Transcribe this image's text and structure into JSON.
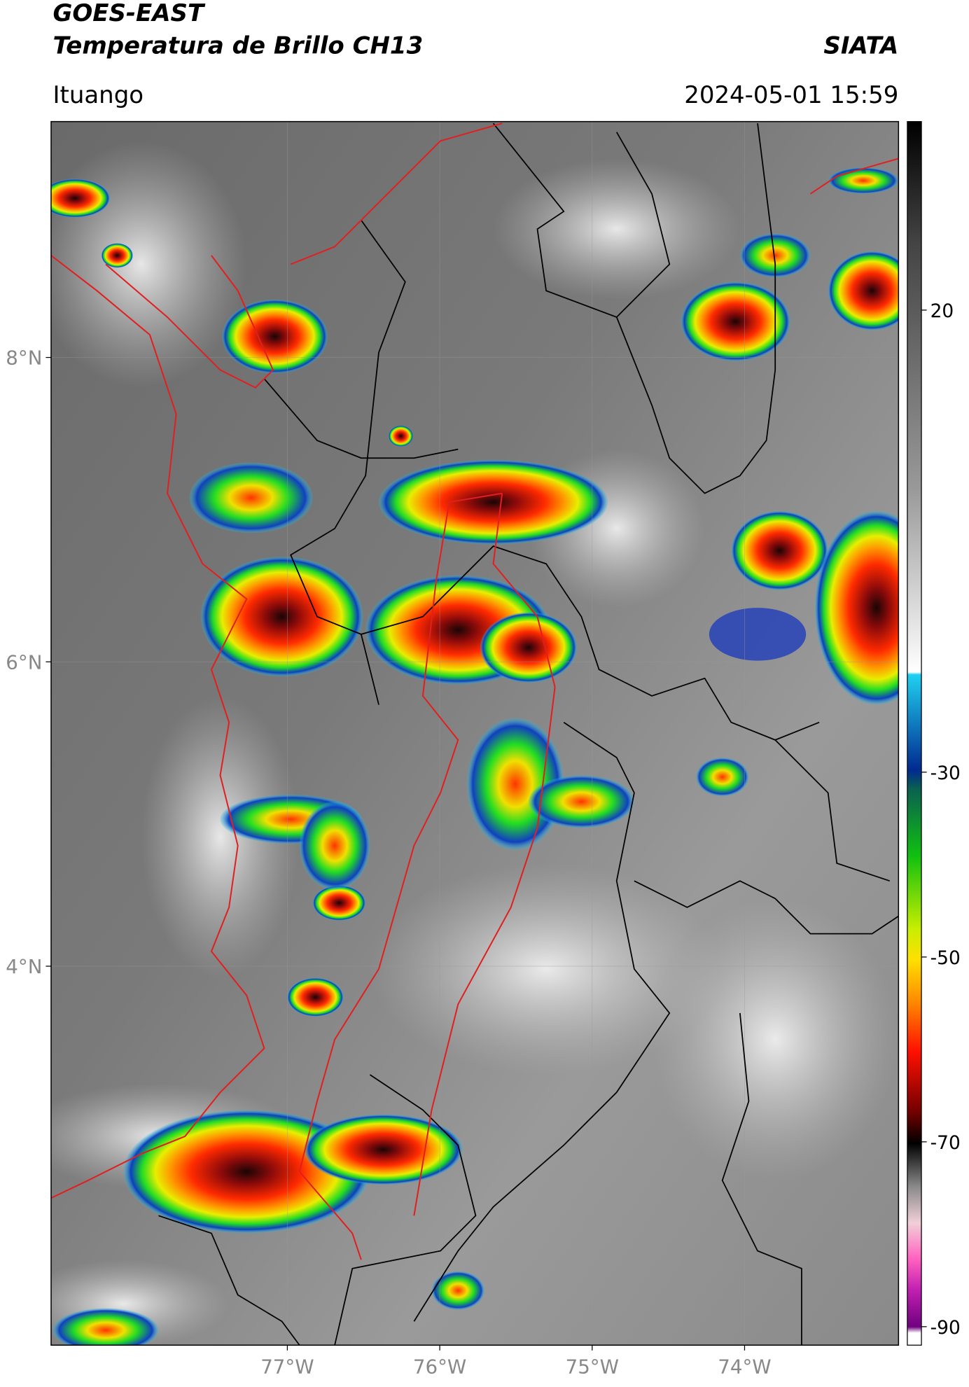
{
  "chart_data": {
    "type": "map",
    "title": "GOES-EAST",
    "subtitle": "Temperatura de Brillo CH13",
    "source": "SIATA",
    "location": "Ituango",
    "datetime": "2024-05-01 15:59",
    "xlim": [
      -78.55,
      -72.99
    ],
    "ylim": [
      1.51,
      9.55
    ],
    "xticks": [
      {
        "value": -77,
        "label": "77°W"
      },
      {
        "value": -76,
        "label": "76°W"
      },
      {
        "value": -75,
        "label": "75°W"
      },
      {
        "value": -74,
        "label": "74°W"
      }
    ],
    "yticks": [
      {
        "value": 8,
        "label": "8°N"
      },
      {
        "value": 6,
        "label": "6°N"
      },
      {
        "value": 4,
        "label": "4°N"
      }
    ],
    "colorbar": {
      "lim": [
        -92,
        40.4
      ],
      "ticks": [
        20,
        -30,
        -50,
        -70,
        -90
      ]
    }
  }
}
